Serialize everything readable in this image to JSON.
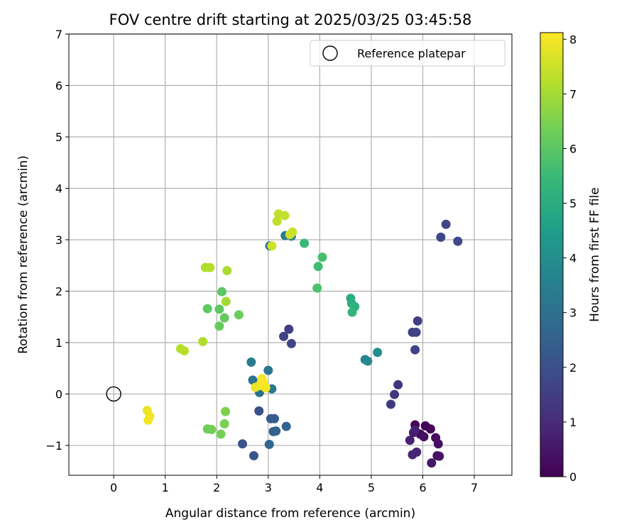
{
  "chart_data": {
    "type": "scatter",
    "title": "FOV centre drift starting at 2025/03/25 03:45:58",
    "xlabel": "Angular distance from reference (arcmin)",
    "ylabel": "Rotation from reference (arcmin)",
    "xlim": [
      -0.87,
      7.73
    ],
    "ylim": [
      -1.58,
      7.0
    ],
    "xticks": [
      0,
      1,
      2,
      3,
      4,
      5,
      6,
      7
    ],
    "yticks": [
      -1,
      0,
      1,
      2,
      3,
      4,
      5,
      6,
      7
    ],
    "grid": true,
    "legend": {
      "position": "top-right",
      "entries": [
        "Reference platepar"
      ]
    },
    "reference_point": {
      "label": "Reference platepar",
      "x": 0,
      "y": 0,
      "marker": "open-circle"
    },
    "colorbar": {
      "label": "Hours from first FF file",
      "min": 0,
      "max": 8.12,
      "ticks": [
        0,
        1,
        2,
        3,
        4,
        5,
        6,
        7,
        8
      ],
      "colormap": [
        "#440154",
        "#482878",
        "#3e4989",
        "#31688e",
        "#26828e",
        "#1f9e89",
        "#35b779",
        "#6ece58",
        "#b5de2b",
        "#fde725"
      ]
    },
    "points": [
      {
        "x": 5.85,
        "y": -0.6,
        "t": 0.05
      },
      {
        "x": 6.05,
        "y": -0.62,
        "t": 0.1
      },
      {
        "x": 6.15,
        "y": -0.68,
        "t": 0.15
      },
      {
        "x": 5.95,
        "y": -0.78,
        "t": 0.2
      },
      {
        "x": 6.25,
        "y": -0.85,
        "t": 0.25
      },
      {
        "x": 6.02,
        "y": -0.83,
        "t": 0.3
      },
      {
        "x": 6.3,
        "y": -0.97,
        "t": 0.35
      },
      {
        "x": 6.28,
        "y": -1.2,
        "t": 0.4
      },
      {
        "x": 6.32,
        "y": -1.21,
        "t": 0.45
      },
      {
        "x": 6.17,
        "y": -1.34,
        "t": 0.5
      },
      {
        "x": 5.82,
        "y": -0.75,
        "t": 0.6
      },
      {
        "x": 5.85,
        "y": -0.7,
        "t": 0.7
      },
      {
        "x": 5.75,
        "y": -0.9,
        "t": 0.75
      },
      {
        "x": 5.88,
        "y": -1.13,
        "t": 0.8
      },
      {
        "x": 5.8,
        "y": -1.18,
        "t": 0.85
      },
      {
        "x": 5.52,
        "y": 0.18,
        "t": 1.2
      },
      {
        "x": 5.45,
        "y": -0.01,
        "t": 1.3
      },
      {
        "x": 5.38,
        "y": -0.2,
        "t": 1.4
      },
      {
        "x": 5.9,
        "y": 1.42,
        "t": 1.5
      },
      {
        "x": 5.8,
        "y": 1.2,
        "t": 1.55
      },
      {
        "x": 5.87,
        "y": 1.2,
        "t": 1.6
      },
      {
        "x": 5.85,
        "y": 0.86,
        "t": 1.65
      },
      {
        "x": 6.45,
        "y": 3.3,
        "t": 1.7
      },
      {
        "x": 6.35,
        "y": 3.05,
        "t": 1.75
      },
      {
        "x": 6.68,
        "y": 2.97,
        "t": 1.8
      },
      {
        "x": 3.4,
        "y": 1.26,
        "t": 1.5
      },
      {
        "x": 3.3,
        "y": 1.12,
        "t": 1.6
      },
      {
        "x": 3.45,
        "y": 0.98,
        "t": 1.7
      },
      {
        "x": 2.82,
        "y": -0.33,
        "t": 2.0
      },
      {
        "x": 2.5,
        "y": -0.97,
        "t": 2.1
      },
      {
        "x": 2.72,
        "y": -1.2,
        "t": 2.15
      },
      {
        "x": 3.05,
        "y": -0.48,
        "t": 2.3
      },
      {
        "x": 3.12,
        "y": -0.48,
        "t": 2.35
      },
      {
        "x": 3.1,
        "y": -0.73,
        "t": 2.4
      },
      {
        "x": 3.15,
        "y": -0.72,
        "t": 2.5
      },
      {
        "x": 3.35,
        "y": -0.63,
        "t": 2.6
      },
      {
        "x": 3.02,
        "y": -0.98,
        "t": 2.7
      },
      {
        "x": 2.83,
        "y": 0.03,
        "t": 3.0
      },
      {
        "x": 2.7,
        "y": 0.27,
        "t": 3.1
      },
      {
        "x": 3.0,
        "y": 0.46,
        "t": 3.2
      },
      {
        "x": 3.07,
        "y": 0.1,
        "t": 3.3
      },
      {
        "x": 2.67,
        "y": 0.62,
        "t": 3.4
      },
      {
        "x": 3.03,
        "y": 2.88,
        "t": 3.2
      },
      {
        "x": 3.33,
        "y": 3.08,
        "t": 3.4
      },
      {
        "x": 3.45,
        "y": 3.07,
        "t": 3.6
      },
      {
        "x": 4.88,
        "y": 0.67,
        "t": 3.7
      },
      {
        "x": 4.93,
        "y": 0.64,
        "t": 3.8
      },
      {
        "x": 5.12,
        "y": 0.81,
        "t": 4.0
      },
      {
        "x": 4.6,
        "y": 1.86,
        "t": 5.0
      },
      {
        "x": 4.62,
        "y": 1.76,
        "t": 5.1
      },
      {
        "x": 4.68,
        "y": 1.7,
        "t": 5.2
      },
      {
        "x": 4.63,
        "y": 1.59,
        "t": 5.3
      },
      {
        "x": 3.7,
        "y": 2.93,
        "t": 5.5
      },
      {
        "x": 3.97,
        "y": 2.48,
        "t": 5.6
      },
      {
        "x": 4.05,
        "y": 2.66,
        "t": 5.7
      },
      {
        "x": 3.95,
        "y": 2.06,
        "t": 5.8
      },
      {
        "x": 2.1,
        "y": 1.99,
        "t": 6.0
      },
      {
        "x": 2.05,
        "y": 1.65,
        "t": 6.05
      },
      {
        "x": 1.82,
        "y": 1.66,
        "t": 6.1
      },
      {
        "x": 2.15,
        "y": 1.48,
        "t": 6.15
      },
      {
        "x": 2.05,
        "y": 1.32,
        "t": 6.2
      },
      {
        "x": 2.43,
        "y": 1.54,
        "t": 6.25
      },
      {
        "x": 1.82,
        "y": -0.68,
        "t": 6.3
      },
      {
        "x": 1.9,
        "y": -0.69,
        "t": 6.35
      },
      {
        "x": 2.08,
        "y": -0.78,
        "t": 6.4
      },
      {
        "x": 2.15,
        "y": -0.58,
        "t": 6.45
      },
      {
        "x": 2.17,
        "y": -0.34,
        "t": 6.5
      },
      {
        "x": 2.18,
        "y": 1.8,
        "t": 7.0
      },
      {
        "x": 2.2,
        "y": 2.4,
        "t": 7.1
      },
      {
        "x": 1.78,
        "y": 2.46,
        "t": 7.15
      },
      {
        "x": 1.87,
        "y": 2.46,
        "t": 7.2
      },
      {
        "x": 1.3,
        "y": 0.88,
        "t": 7.2
      },
      {
        "x": 1.37,
        "y": 0.84,
        "t": 7.25
      },
      {
        "x": 1.73,
        "y": 1.02,
        "t": 7.15
      },
      {
        "x": 3.2,
        "y": 3.5,
        "t": 7.3
      },
      {
        "x": 3.32,
        "y": 3.47,
        "t": 7.4
      },
      {
        "x": 3.17,
        "y": 3.36,
        "t": 7.35
      },
      {
        "x": 3.47,
        "y": 3.15,
        "t": 7.45
      },
      {
        "x": 3.42,
        "y": 3.1,
        "t": 7.5
      },
      {
        "x": 3.07,
        "y": 2.88,
        "t": 7.55
      },
      {
        "x": 0.65,
        "y": -0.32,
        "t": 7.9
      },
      {
        "x": 0.7,
        "y": -0.43,
        "t": 7.95
      },
      {
        "x": 0.67,
        "y": -0.51,
        "t": 8.0
      },
      {
        "x": 2.75,
        "y": 0.13,
        "t": 7.9
      },
      {
        "x": 2.82,
        "y": 0.16,
        "t": 7.95
      },
      {
        "x": 2.88,
        "y": 0.3,
        "t": 8.0
      },
      {
        "x": 2.95,
        "y": 0.12,
        "t": 8.05
      },
      {
        "x": 2.9,
        "y": 0.22,
        "t": 8.1
      }
    ]
  }
}
